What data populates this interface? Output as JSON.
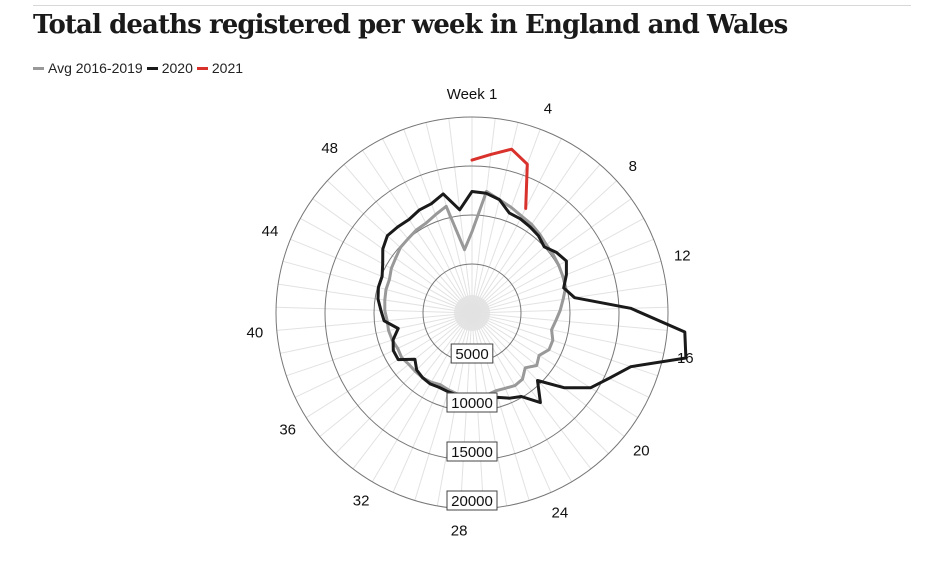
{
  "header": {
    "title": "Total deaths registered per week in England and Wales"
  },
  "chart_data": {
    "type": "radar",
    "title": "Total deaths registered per week in England and Wales",
    "angular_axis": {
      "first_label": "Week 1",
      "labeled_weeks": [
        4,
        8,
        12,
        16,
        20,
        24,
        28,
        32,
        36,
        40,
        44,
        48
      ],
      "total_weeks": 53
    },
    "radial_axis": {
      "min": 0,
      "max": 20000,
      "rings": [
        5000,
        10000,
        15000,
        20000
      ],
      "ring_labels": [
        "5000",
        "10000",
        "15000",
        "20000"
      ]
    },
    "weeks": [
      1,
      2,
      3,
      4,
      5,
      6,
      7,
      8,
      9,
      10,
      11,
      12,
      13,
      14,
      15,
      16,
      17,
      18,
      19,
      20,
      21,
      22,
      23,
      24,
      25,
      26,
      27,
      28,
      29,
      30,
      31,
      32,
      33,
      34,
      35,
      36,
      37,
      38,
      39,
      40,
      41,
      42,
      43,
      44,
      45,
      46,
      47,
      48,
      49,
      50,
      51,
      52,
      53
    ],
    "series": [
      {
        "name": "Avg 2016-2019",
        "color": "#999999",
        "values": [
          8300,
          12500,
          11900,
          11500,
          11100,
          10900,
          10600,
          10300,
          10200,
          10100,
          10000,
          9900,
          9400,
          9000,
          8600,
          8300,
          8700,
          8700,
          8100,
          8500,
          7800,
          8500,
          8600,
          8400,
          8300,
          8500,
          8700,
          8600,
          8400,
          8200,
          8000,
          8200,
          8300,
          8300,
          8300,
          8500,
          8400,
          8600,
          8700,
          8700,
          8900,
          9000,
          9100,
          9100,
          9400,
          9600,
          9900,
          10000,
          10200,
          10300,
          10700,
          11200,
          6500
        ]
      },
      {
        "name": "2020",
        "color": "#1a1a1a",
        "values": [
          12400,
          12300,
          11900,
          10900,
          10800,
          10600,
          10400,
          10000,
          10600,
          11000,
          10400,
          9700,
          10600,
          16200,
          21800,
          22300,
          17100,
          15500,
          14300,
          12100,
          9600,
          11500,
          9900,
          9500,
          9000,
          8900,
          8600,
          8500,
          8500,
          8400,
          8300,
          8400,
          8300,
          8100,
          7500,
          8900,
          8900,
          8500,
          7700,
          9000,
          9300,
          9700,
          9900,
          9900,
          10400,
          11200,
          11700,
          11600,
          11500,
          11800,
          11900,
          12500,
          10600
        ]
      },
      {
        "name": "2021",
        "color": "#d9312b",
        "values": [
          15600,
          16300,
          17200,
          16200,
          12000
        ]
      }
    ]
  }
}
